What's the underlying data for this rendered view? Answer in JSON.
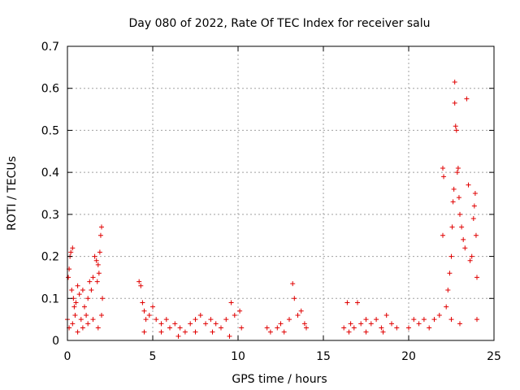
{
  "chart_data": {
    "type": "scatter",
    "title": "Day 080 of 2022, Rate Of TEC Index for receiver salu",
    "xlabel": "GPS time / hours",
    "ylabel": "ROTI / TECUs",
    "xlim": [
      0,
      25
    ],
    "ylim": [
      0,
      0.7
    ],
    "xticks": [
      "0",
      "5",
      "10",
      "15",
      "20",
      "25"
    ],
    "xtick_values": [
      0,
      5,
      10,
      15,
      20,
      25
    ],
    "yticks": [
      "0",
      "0.1",
      "0.2",
      "0.3",
      "0.4",
      "0.5",
      "0.6",
      "0.7"
    ],
    "ytick_values": [
      0,
      0.1,
      0.2,
      0.3,
      0.4,
      0.5,
      0.6,
      0.7
    ],
    "grid": true,
    "marker": "plus",
    "color": "#e00000",
    "series": [
      {
        "values": [
          [
            0.0,
            0.05
          ],
          [
            0.05,
            0.15
          ],
          [
            0.1,
            0.17
          ],
          [
            0.15,
            0.2
          ],
          [
            0.2,
            0.21
          ],
          [
            0.25,
            0.12
          ],
          [
            0.3,
            0.22
          ],
          [
            0.35,
            0.1
          ],
          [
            0.4,
            0.08
          ],
          [
            0.45,
            0.06
          ],
          [
            0.5,
            0.09
          ],
          [
            0.6,
            0.13
          ],
          [
            0.7,
            0.11
          ],
          [
            0.8,
            0.05
          ],
          [
            0.9,
            0.12
          ],
          [
            1.0,
            0.08
          ],
          [
            1.1,
            0.06
          ],
          [
            1.2,
            0.1
          ],
          [
            1.3,
            0.14
          ],
          [
            1.4,
            0.12
          ],
          [
            1.5,
            0.15
          ],
          [
            1.6,
            0.2
          ],
          [
            1.7,
            0.19
          ],
          [
            1.75,
            0.14
          ],
          [
            1.8,
            0.18
          ],
          [
            1.85,
            0.16
          ],
          [
            1.9,
            0.21
          ],
          [
            1.95,
            0.25
          ],
          [
            2.0,
            0.27
          ],
          [
            2.05,
            0.1
          ],
          [
            0.1,
            0.03
          ],
          [
            0.3,
            0.04
          ],
          [
            0.6,
            0.02
          ],
          [
            0.9,
            0.03
          ],
          [
            1.2,
            0.04
          ],
          [
            1.5,
            0.05
          ],
          [
            1.8,
            0.03
          ],
          [
            2.0,
            0.06
          ],
          [
            4.2,
            0.14
          ],
          [
            4.3,
            0.13
          ],
          [
            4.4,
            0.09
          ],
          [
            4.5,
            0.07
          ],
          [
            4.6,
            0.05
          ],
          [
            4.8,
            0.06
          ],
          [
            5.0,
            0.08
          ],
          [
            5.2,
            0.05
          ],
          [
            5.5,
            0.04
          ],
          [
            5.8,
            0.05
          ],
          [
            6.0,
            0.03
          ],
          [
            6.3,
            0.04
          ],
          [
            6.6,
            0.03
          ],
          [
            6.9,
            0.02
          ],
          [
            7.2,
            0.04
          ],
          [
            7.5,
            0.05
          ],
          [
            7.8,
            0.06
          ],
          [
            8.1,
            0.04
          ],
          [
            8.4,
            0.05
          ],
          [
            8.7,
            0.04
          ],
          [
            9.0,
            0.03
          ],
          [
            9.3,
            0.05
          ],
          [
            9.6,
            0.09
          ],
          [
            9.8,
            0.06
          ],
          [
            10.1,
            0.07
          ],
          [
            10.2,
            0.03
          ],
          [
            4.5,
            0.02
          ],
          [
            5.5,
            0.02
          ],
          [
            6.5,
            0.01
          ],
          [
            7.5,
            0.02
          ],
          [
            8.5,
            0.02
          ],
          [
            9.5,
            0.01
          ],
          [
            11.7,
            0.03
          ],
          [
            11.9,
            0.02
          ],
          [
            12.3,
            0.03
          ],
          [
            12.5,
            0.04
          ],
          [
            12.7,
            0.02
          ],
          [
            13.0,
            0.05
          ],
          [
            13.2,
            0.135
          ],
          [
            13.3,
            0.1
          ],
          [
            13.5,
            0.06
          ],
          [
            13.7,
            0.07
          ],
          [
            13.9,
            0.04
          ],
          [
            14.0,
            0.03
          ],
          [
            16.2,
            0.03
          ],
          [
            16.4,
            0.09
          ],
          [
            16.6,
            0.04
          ],
          [
            16.8,
            0.03
          ],
          [
            17.0,
            0.09
          ],
          [
            17.2,
            0.04
          ],
          [
            17.5,
            0.05
          ],
          [
            17.8,
            0.04
          ],
          [
            18.1,
            0.05
          ],
          [
            18.4,
            0.03
          ],
          [
            18.7,
            0.06
          ],
          [
            19.0,
            0.04
          ],
          [
            19.3,
            0.03
          ],
          [
            16.5,
            0.02
          ],
          [
            17.5,
            0.02
          ],
          [
            18.5,
            0.02
          ],
          [
            20.0,
            0.03
          ],
          [
            20.3,
            0.05
          ],
          [
            20.6,
            0.04
          ],
          [
            20.9,
            0.05
          ],
          [
            21.2,
            0.03
          ],
          [
            21.5,
            0.05
          ],
          [
            21.8,
            0.06
          ],
          [
            22.0,
            0.25
          ],
          [
            22.0,
            0.41
          ],
          [
            22.05,
            0.39
          ],
          [
            22.2,
            0.08
          ],
          [
            22.3,
            0.12
          ],
          [
            22.4,
            0.16
          ],
          [
            22.5,
            0.2
          ],
          [
            22.55,
            0.27
          ],
          [
            22.6,
            0.33
          ],
          [
            22.65,
            0.36
          ],
          [
            22.7,
            0.615
          ],
          [
            22.7,
            0.565
          ],
          [
            22.75,
            0.51
          ],
          [
            22.8,
            0.5
          ],
          [
            22.85,
            0.4
          ],
          [
            22.9,
            0.41
          ],
          [
            22.95,
            0.34
          ],
          [
            23.0,
            0.3
          ],
          [
            23.1,
            0.27
          ],
          [
            23.2,
            0.24
          ],
          [
            23.3,
            0.22
          ],
          [
            23.4,
            0.575
          ],
          [
            23.5,
            0.37
          ],
          [
            23.6,
            0.19
          ],
          [
            23.7,
            0.2
          ],
          [
            23.8,
            0.29
          ],
          [
            23.85,
            0.32
          ],
          [
            23.9,
            0.35
          ],
          [
            23.95,
            0.25
          ],
          [
            24.0,
            0.15
          ],
          [
            24.0,
            0.05
          ],
          [
            22.5,
            0.05
          ],
          [
            23.0,
            0.04
          ]
        ]
      }
    ]
  }
}
